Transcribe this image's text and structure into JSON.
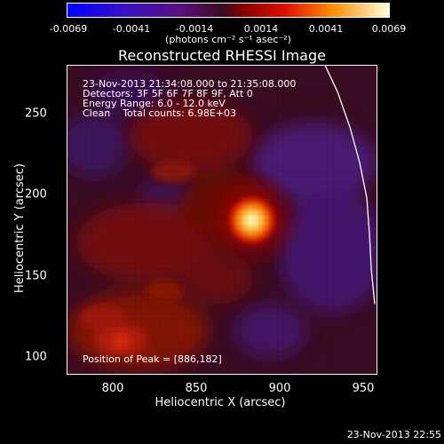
{
  "colorbar": {
    "ticks": [
      "-0.0069",
      "-0.0041",
      "-0.0014",
      "0.0014",
      "0.0041",
      "0.0069"
    ],
    "units": "(photons cm⁻² s⁻¹ asec⁻²)"
  },
  "title": "Reconstructed RHESSI Image",
  "annotations": {
    "time_range": "23-Nov-2013 21:34:08.000 to 21:35:08.000",
    "detectors": "Detectors: 3F 5F 6F 7F 8F 9F, Att 0",
    "energy": "Energy Range: 6.0 - 12.0 keV",
    "method": "Clean    Total counts: 6.98E+03",
    "peak": "Position of Peak = [886,182]"
  },
  "axes": {
    "x_label": "Heliocentric X (arcsec)",
    "y_label": "Heliocentric Y (arcsec)",
    "x_ticks": [
      "800",
      "850",
      "900",
      "950"
    ],
    "y_ticks": [
      "100",
      "150",
      "200",
      "250"
    ]
  },
  "timestamp": "23-Nov-2013 22:55",
  "colors": {
    "background": "#000000",
    "text": "#ffffff"
  }
}
